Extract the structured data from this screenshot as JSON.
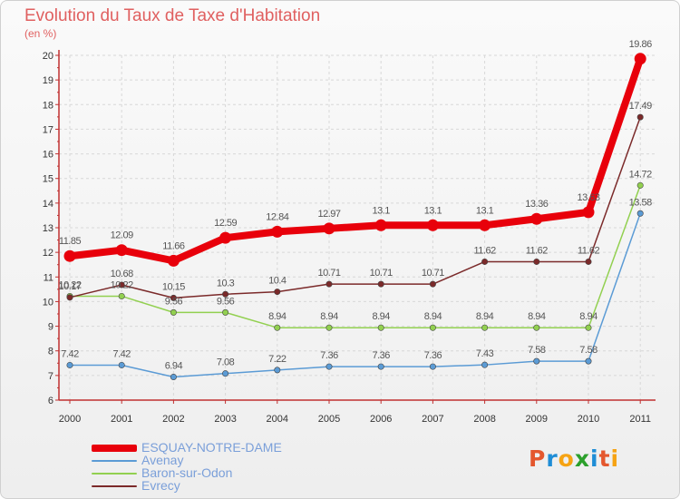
{
  "title": "Evolution du Taux de Taxe d'Habitation",
  "subtitle": "(en %)",
  "logo": "Proxiti",
  "logo_colors": [
    "#e4572e",
    "#1f8dd6",
    "#f6a313",
    "#2ca02c",
    "#1f8dd6",
    "#e4572e",
    "#f6a313"
  ],
  "colors": {
    "axis": "#c03030",
    "grid": "#d8d8d8",
    "text": "#333333",
    "label": "#555555"
  },
  "chart_data": {
    "type": "line",
    "title": "Evolution du Taux de Taxe d'Habitation",
    "ylabel": "(en %)",
    "xlabel": "",
    "ylim": [
      6,
      20
    ],
    "yticks": [
      "6",
      "7",
      "8",
      "9",
      "10",
      "11",
      "12",
      "13",
      "14",
      "15",
      "16",
      "17",
      "18",
      "19",
      "20"
    ],
    "categories": [
      "2000",
      "2001",
      "2002",
      "2003",
      "2004",
      "2005",
      "2006",
      "2007",
      "2008",
      "2009",
      "2010",
      "2011"
    ],
    "grid": true,
    "series": [
      {
        "name": "ESQUAY-NOTRE-DAME",
        "color": "#e8000b",
        "values": [
          11.85,
          12.09,
          11.66,
          12.59,
          12.84,
          12.97,
          13.1,
          13.1,
          13.1,
          13.36,
          13.63,
          19.86
        ],
        "labels": [
          "11.85",
          "12.09",
          "11.66",
          "12.59",
          "12.84",
          "12.97",
          "13.1",
          "13.1",
          "13.1",
          "13.36",
          "13.63",
          "19.86"
        ]
      },
      {
        "name": "Avenay",
        "color": "#5b9bd5",
        "values": [
          7.42,
          7.42,
          6.94,
          7.08,
          7.22,
          7.36,
          7.36,
          7.36,
          7.43,
          7.58,
          7.58,
          13.58
        ],
        "labels": [
          "7.42",
          "7.42",
          "6.94",
          "7.08",
          "7.22",
          "7.36",
          "7.36",
          "7.36",
          "7.43",
          "7.58",
          "7.58",
          "13.58"
        ]
      },
      {
        "name": "Baron-sur-Odon",
        "color": "#92d050",
        "values": [
          10.22,
          10.22,
          9.56,
          9.56,
          8.94,
          8.94,
          8.94,
          8.94,
          8.94,
          8.94,
          8.94,
          14.72
        ],
        "labels": [
          "10.22",
          "10.22",
          "9.56",
          "9.56",
          "8.94",
          "8.94",
          "8.94",
          "8.94",
          "8.94",
          "8.94",
          "8.94",
          "14.72"
        ]
      },
      {
        "name": "Evrecy",
        "color": "#7b2a2a",
        "values": [
          10.17,
          10.68,
          10.15,
          10.3,
          10.4,
          10.71,
          10.71,
          10.71,
          11.62,
          11.62,
          11.62,
          17.49
        ],
        "labels": [
          "10.17",
          "10.68",
          "10.15",
          "10.3",
          "10.4",
          "10.71",
          "10.71",
          "10.71",
          "11.62",
          "11.62",
          "11.62",
          "17.49"
        ]
      }
    ]
  }
}
